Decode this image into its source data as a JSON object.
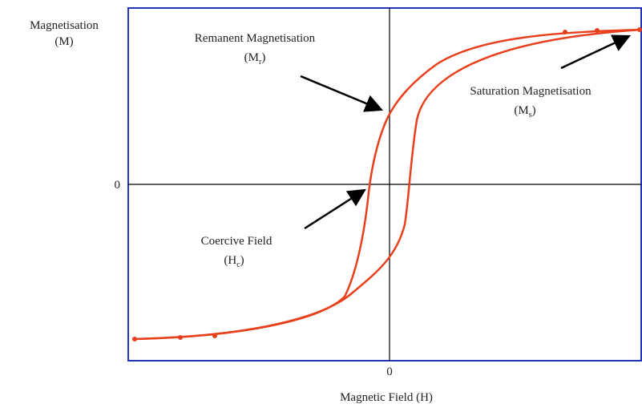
{
  "diagram": {
    "y_axis": {
      "title": "Magnetisation",
      "symbol": "(M)",
      "zero": "0"
    },
    "x_axis": {
      "title": "Magnetic Field (H)",
      "zero": "0"
    },
    "annotations": [
      {
        "title": "Remanent Magnetisation",
        "open": "(M",
        "sub": "r",
        "close": ")"
      },
      {
        "title": "Saturation Magnetisation",
        "open": "(M",
        "sub": "s",
        "close": ")"
      },
      {
        "title": "Coercive Field",
        "open": "(H",
        "sub": "c",
        "close": ")"
      }
    ]
  }
}
